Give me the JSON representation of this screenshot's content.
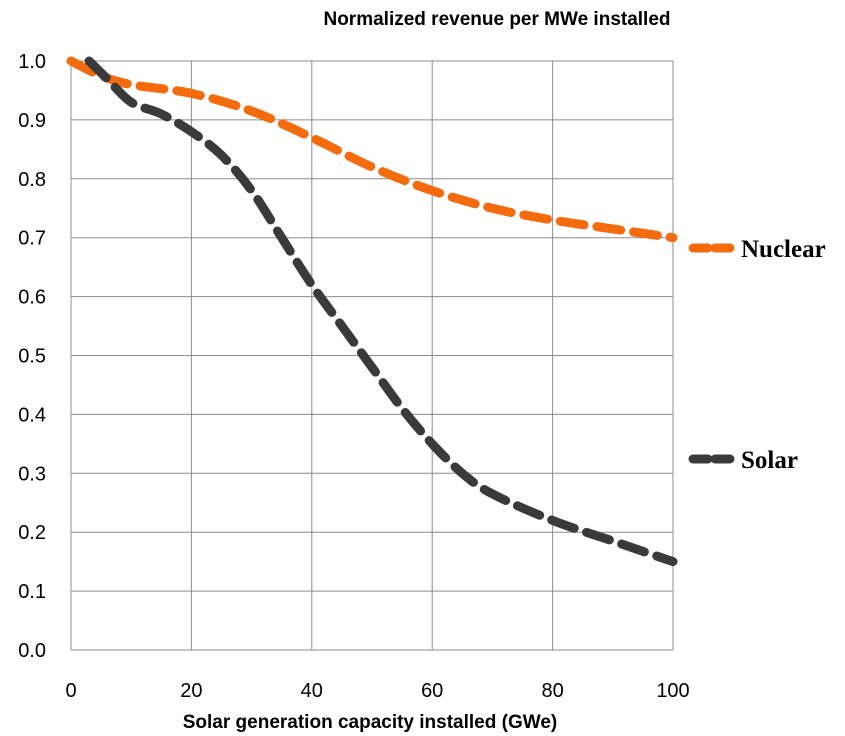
{
  "chart_data": {
    "type": "line",
    "title": "Normalized revenue per MWe installed",
    "xlabel": "Solar generation capacity installed (GWe)",
    "ylabel": "",
    "xlim": [
      0,
      100
    ],
    "ylim": [
      0,
      1.0
    ],
    "x_ticks": [
      "0",
      "20",
      "40",
      "60",
      "80",
      "100"
    ],
    "y_ticks": [
      "0.0",
      "0.1",
      "0.2",
      "0.3",
      "0.4",
      "0.5",
      "0.6",
      "0.7",
      "0.8",
      "0.9",
      "1.0"
    ],
    "grid": true,
    "legend_position": "right",
    "series": [
      {
        "name": "Nuclear",
        "color": "#f46b0d",
        "x": [
          0,
          5,
          10,
          20,
          30,
          40,
          50,
          60,
          70,
          80,
          90,
          100
        ],
        "y": [
          1.0,
          0.975,
          0.96,
          0.945,
          0.915,
          0.87,
          0.82,
          0.78,
          0.75,
          0.73,
          0.715,
          0.7
        ]
      },
      {
        "name": "Solar",
        "color": "#3a3a3a",
        "x": [
          3,
          6,
          10,
          15,
          20,
          25,
          30,
          35,
          40,
          45,
          50,
          55,
          60,
          65,
          70,
          80,
          90,
          100
        ],
        "y": [
          1.0,
          0.97,
          0.93,
          0.91,
          0.88,
          0.84,
          0.78,
          0.7,
          0.62,
          0.55,
          0.48,
          0.41,
          0.35,
          0.3,
          0.265,
          0.22,
          0.185,
          0.15
        ]
      }
    ]
  }
}
